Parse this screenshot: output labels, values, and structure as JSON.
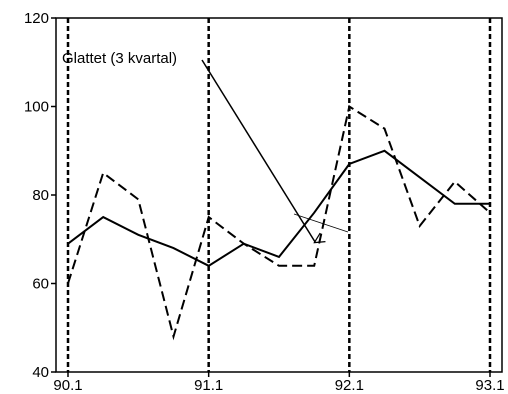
{
  "chart_data": {
    "type": "line",
    "title": "",
    "xlabel": "",
    "ylabel": "",
    "x": [
      "90.1",
      "90.2",
      "90.3",
      "90.4",
      "91.1",
      "91.2",
      "91.3",
      "91.4",
      "92.1",
      "92.2",
      "92.3",
      "92.4",
      "93.1"
    ],
    "series": [
      {
        "style": "dashed",
        "values": [
          60,
          85,
          79,
          48,
          75,
          69,
          64,
          64,
          100,
          95,
          73,
          83,
          76
        ]
      },
      {
        "name": "Glattet (3 kvartal)",
        "style": "solid",
        "values": [
          69,
          75,
          71,
          68,
          64,
          69,
          66,
          76,
          87,
          90,
          84,
          78,
          78
        ]
      }
    ],
    "ylim": [
      40,
      120
    ],
    "yticks": [
      40,
      60,
      80,
      100,
      120
    ],
    "xticks": [
      "90.1",
      "91.1",
      "92.1",
      "93.1"
    ],
    "vertical_dashed_lines_at": [
      "90.1",
      "91.1",
      "92.1",
      "93.1"
    ],
    "annotation": {
      "text": "Glattet (3 kvartal)",
      "points_to": "91.4",
      "value": 68
    },
    "grid": false,
    "colors": {
      "line": "#000000",
      "background": "#ffffff"
    }
  }
}
